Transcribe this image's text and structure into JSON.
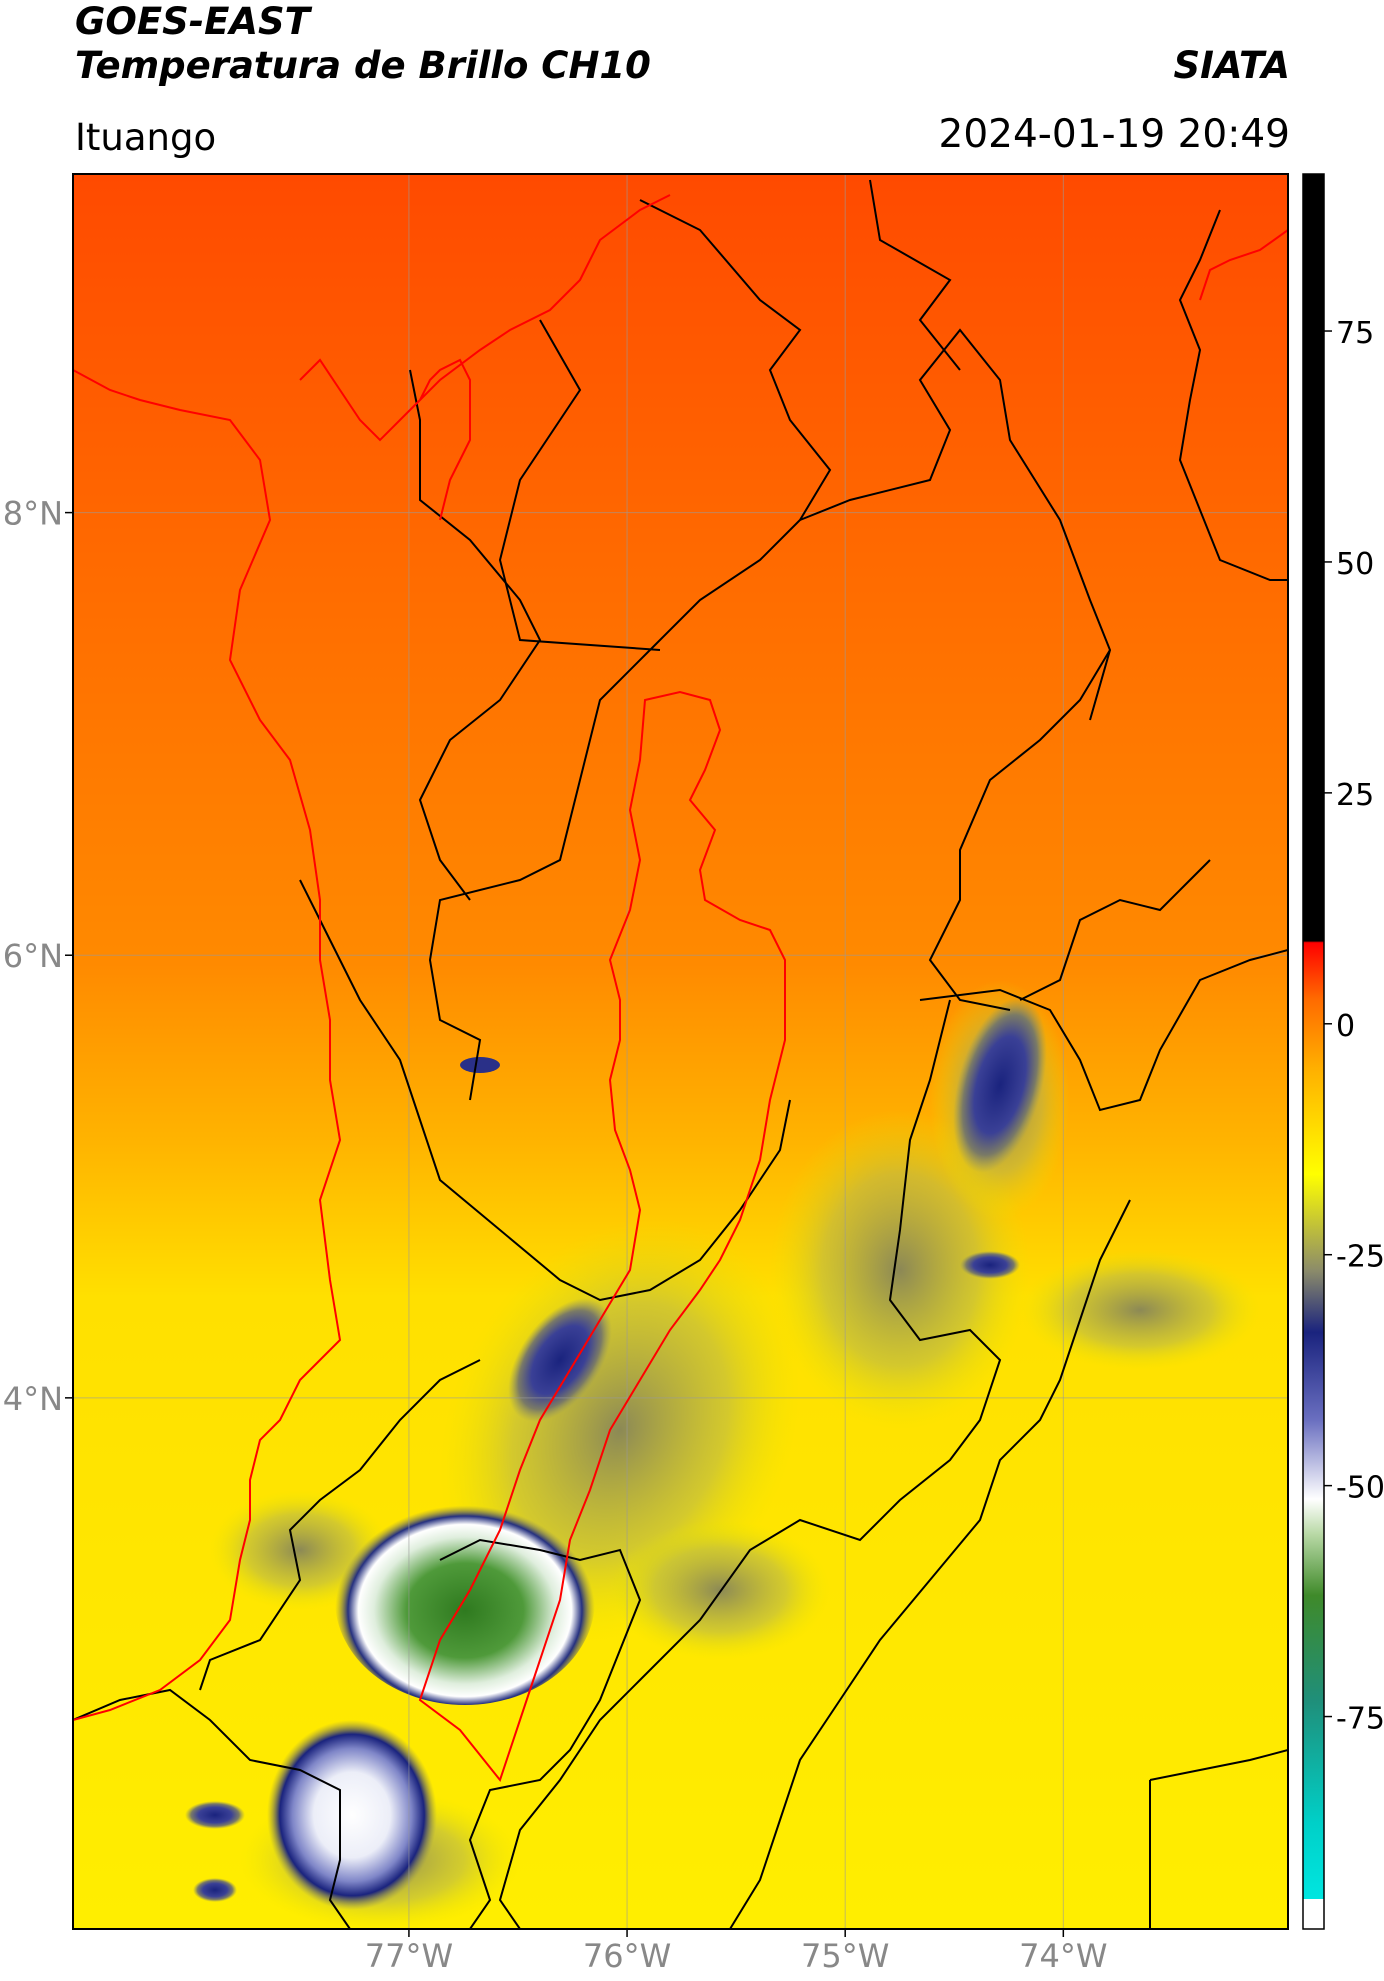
{
  "header": {
    "line1": "GOES-EAST",
    "line2": "Temperatura de Brillo CH10",
    "organization": "SIATA",
    "place": "Ituango",
    "datetime": "2024-01-19 20:49"
  },
  "map": {
    "lon_range": [
      -78.54,
      -72.97
    ],
    "lat_range": [
      1.6,
      9.53
    ],
    "lat_ticks": [
      {
        "value": 8,
        "label": "8°N"
      },
      {
        "value": 6,
        "label": "6°N"
      },
      {
        "value": 4,
        "label": "4°N"
      }
    ],
    "lon_ticks": [
      {
        "value": -77,
        "label": "77°W"
      },
      {
        "value": -76,
        "label": "76°W"
      },
      {
        "value": -75,
        "label": "75°W"
      },
      {
        "value": -74,
        "label": "74°W"
      }
    ],
    "grid": true,
    "border_color": "#000000",
    "basin_color": "#ff0000"
  },
  "colorbar": {
    "range": [
      -98,
      92
    ],
    "ticks": [
      {
        "value": 75,
        "label": "75"
      },
      {
        "value": 50,
        "label": "50"
      },
      {
        "value": 25,
        "label": "25"
      },
      {
        "value": 0,
        "label": "0"
      },
      {
        "value": -25,
        "label": "-25"
      },
      {
        "value": -50,
        "label": "-50"
      },
      {
        "value": -75,
        "label": "-75"
      }
    ],
    "colors": [
      "#ffffff",
      "#00e6e0",
      "#1f8f7a",
      "#3f8a2a",
      "#b9d9a6",
      "#ffffff",
      "#1a237e",
      "#8b8b6a",
      "#ffff00",
      "#ff9a00",
      "#ff2a00",
      "#000000"
    ]
  }
}
